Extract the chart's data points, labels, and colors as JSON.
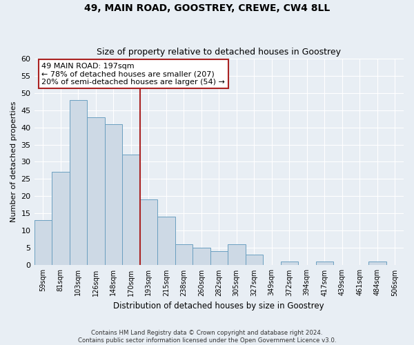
{
  "title": "49, MAIN ROAD, GOOSTREY, CREWE, CW4 8LL",
  "subtitle": "Size of property relative to detached houses in Goostrey",
  "xlabel": "Distribution of detached houses by size in Goostrey",
  "ylabel": "Number of detached properties",
  "bin_labels": [
    "59sqm",
    "81sqm",
    "103sqm",
    "126sqm",
    "148sqm",
    "170sqm",
    "193sqm",
    "215sqm",
    "238sqm",
    "260sqm",
    "282sqm",
    "305sqm",
    "327sqm",
    "349sqm",
    "372sqm",
    "394sqm",
    "417sqm",
    "439sqm",
    "461sqm",
    "484sqm",
    "506sqm"
  ],
  "bar_heights": [
    13,
    27,
    48,
    43,
    41,
    32,
    19,
    14,
    6,
    5,
    4,
    6,
    3,
    0,
    1,
    0,
    1,
    0,
    0,
    1,
    0
  ],
  "bar_color": "#cdd9e5",
  "bar_edge_color": "#6a9fc0",
  "marker_index": 6,
  "marker_line_color": "#aa2222",
  "annotation_line1": "49 MAIN ROAD: 197sqm",
  "annotation_line2": "← 78% of detached houses are smaller (207)",
  "annotation_line3": "20% of semi-detached houses are larger (54) →",
  "annotation_box_color": "#ffffff",
  "annotation_box_edge": "#aa2222",
  "ylim": [
    0,
    60
  ],
  "yticks": [
    0,
    5,
    10,
    15,
    20,
    25,
    30,
    35,
    40,
    45,
    50,
    55,
    60
  ],
  "footer_text": "Contains HM Land Registry data © Crown copyright and database right 2024.\nContains public sector information licensed under the Open Government Licence v3.0.",
  "bg_color": "#e8eef4",
  "plot_bg_color": "#e8eef4",
  "grid_color": "#ffffff"
}
